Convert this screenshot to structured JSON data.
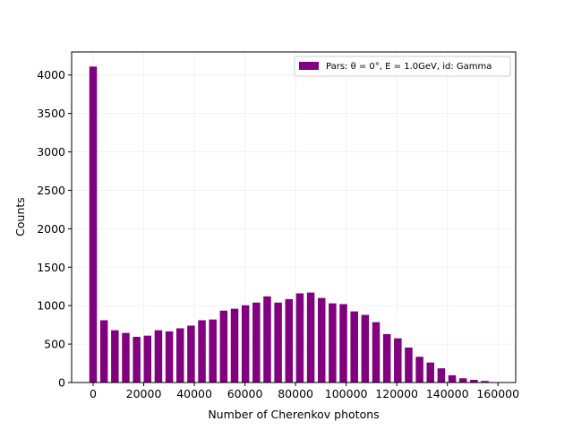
{
  "chart_data": {
    "type": "bar",
    "title": "",
    "xlabel": "Number of Cherenkov photons",
    "ylabel": "Counts",
    "xlim": [
      -8500,
      167000
    ],
    "ylim": [
      0,
      4300
    ],
    "xticks": [
      0,
      20000,
      40000,
      60000,
      80000,
      100000,
      120000,
      140000,
      160000
    ],
    "yticks": [
      0,
      500,
      1000,
      1500,
      2000,
      2500,
      3000,
      3500,
      4000
    ],
    "grid": true,
    "legend_position": "top-right",
    "bin_width": 4300,
    "color": "#800080",
    "series": [
      {
        "name": "Pars: θ = 0°, E = 1.0GeV, id: Gamma",
        "x": [
          0,
          4300,
          8600,
          12900,
          17200,
          21500,
          25800,
          30100,
          34400,
          38700,
          43000,
          47300,
          51600,
          55900,
          60200,
          64500,
          68800,
          73100,
          77400,
          81700,
          86000,
          90300,
          94600,
          98900,
          103200,
          107500,
          111800,
          116100,
          120400,
          124700,
          129000,
          133300,
          137600,
          141900,
          146200,
          150500,
          154800
        ],
        "values": [
          4110,
          810,
          680,
          645,
          595,
          610,
          680,
          665,
          705,
          740,
          810,
          820,
          935,
          960,
          1005,
          1040,
          1120,
          1040,
          1085,
          1160,
          1170,
          1100,
          1030,
          1020,
          925,
          880,
          785,
          630,
          575,
          455,
          335,
          260,
          185,
          95,
          55,
          35,
          20
        ]
      }
    ]
  }
}
